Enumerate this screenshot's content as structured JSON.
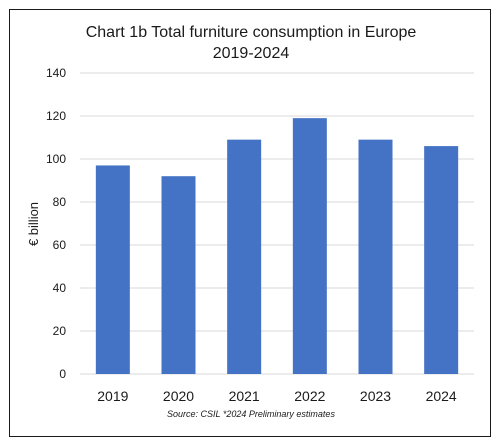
{
  "chart_data": {
    "type": "bar",
    "title": "Chart 1b Total furniture consumption in Europe",
    "subtitle": "2019-2024",
    "xlabel": "",
    "ylabel": "€ billion",
    "categories": [
      "2019",
      "2020",
      "2021",
      "2022",
      "2023",
      "2024"
    ],
    "values": [
      97,
      92,
      109,
      119,
      109,
      106
    ],
    "ylim": [
      0,
      140
    ],
    "yticks": [
      0,
      20,
      40,
      60,
      80,
      100,
      120,
      140
    ],
    "grid": true,
    "bar_color": "#4472c4",
    "grid_color": "#d9d9d9",
    "source": "Source: CSIL *2024 Preliminary estimates"
  }
}
